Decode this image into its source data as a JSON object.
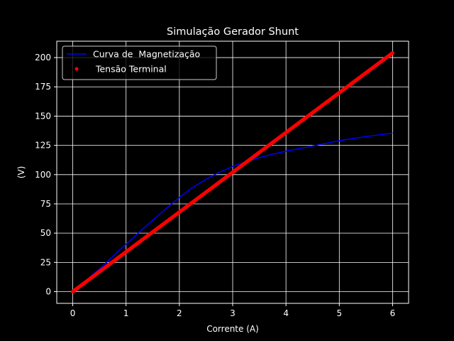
{
  "chart_data": {
    "type": "line",
    "title": "Simulação Gerador Shunt",
    "xlabel": "Corrente (A)",
    "ylabel": "(V)",
    "xlim": [
      -0.3,
      6.3
    ],
    "ylim": [
      -10,
      214
    ],
    "x_ticks": [
      0,
      1,
      2,
      3,
      4,
      5,
      6
    ],
    "y_ticks": [
      0,
      25,
      50,
      75,
      100,
      125,
      150,
      175,
      200
    ],
    "grid": true,
    "legend_position": "top-left",
    "background_color": "#000000",
    "foreground_color": "#ffffff",
    "series": [
      {
        "name": "Curva de  Magnetização",
        "style": "line",
        "color": "#0000ff",
        "x": [
          0,
          0.25,
          0.5,
          0.75,
          1.0,
          1.25,
          1.5,
          1.75,
          2.0,
          2.25,
          2.5,
          2.75,
          3.0,
          3.25,
          3.5,
          3.75,
          4.0,
          4.5,
          5.0,
          5.5,
          6.0
        ],
        "y": [
          0,
          9.5,
          19.5,
          30,
          40.5,
          51,
          61,
          71,
          80.5,
          89,
          96,
          102,
          107,
          111,
          114.5,
          117.5,
          120,
          124.5,
          129,
          132.5,
          135.5
        ]
      },
      {
        "name": " Tensão Terminal",
        "style": "scatter",
        "color": "#ff0000",
        "x_start": 0,
        "x_end": 6,
        "y_start": 0,
        "y_end": 204
      }
    ]
  }
}
